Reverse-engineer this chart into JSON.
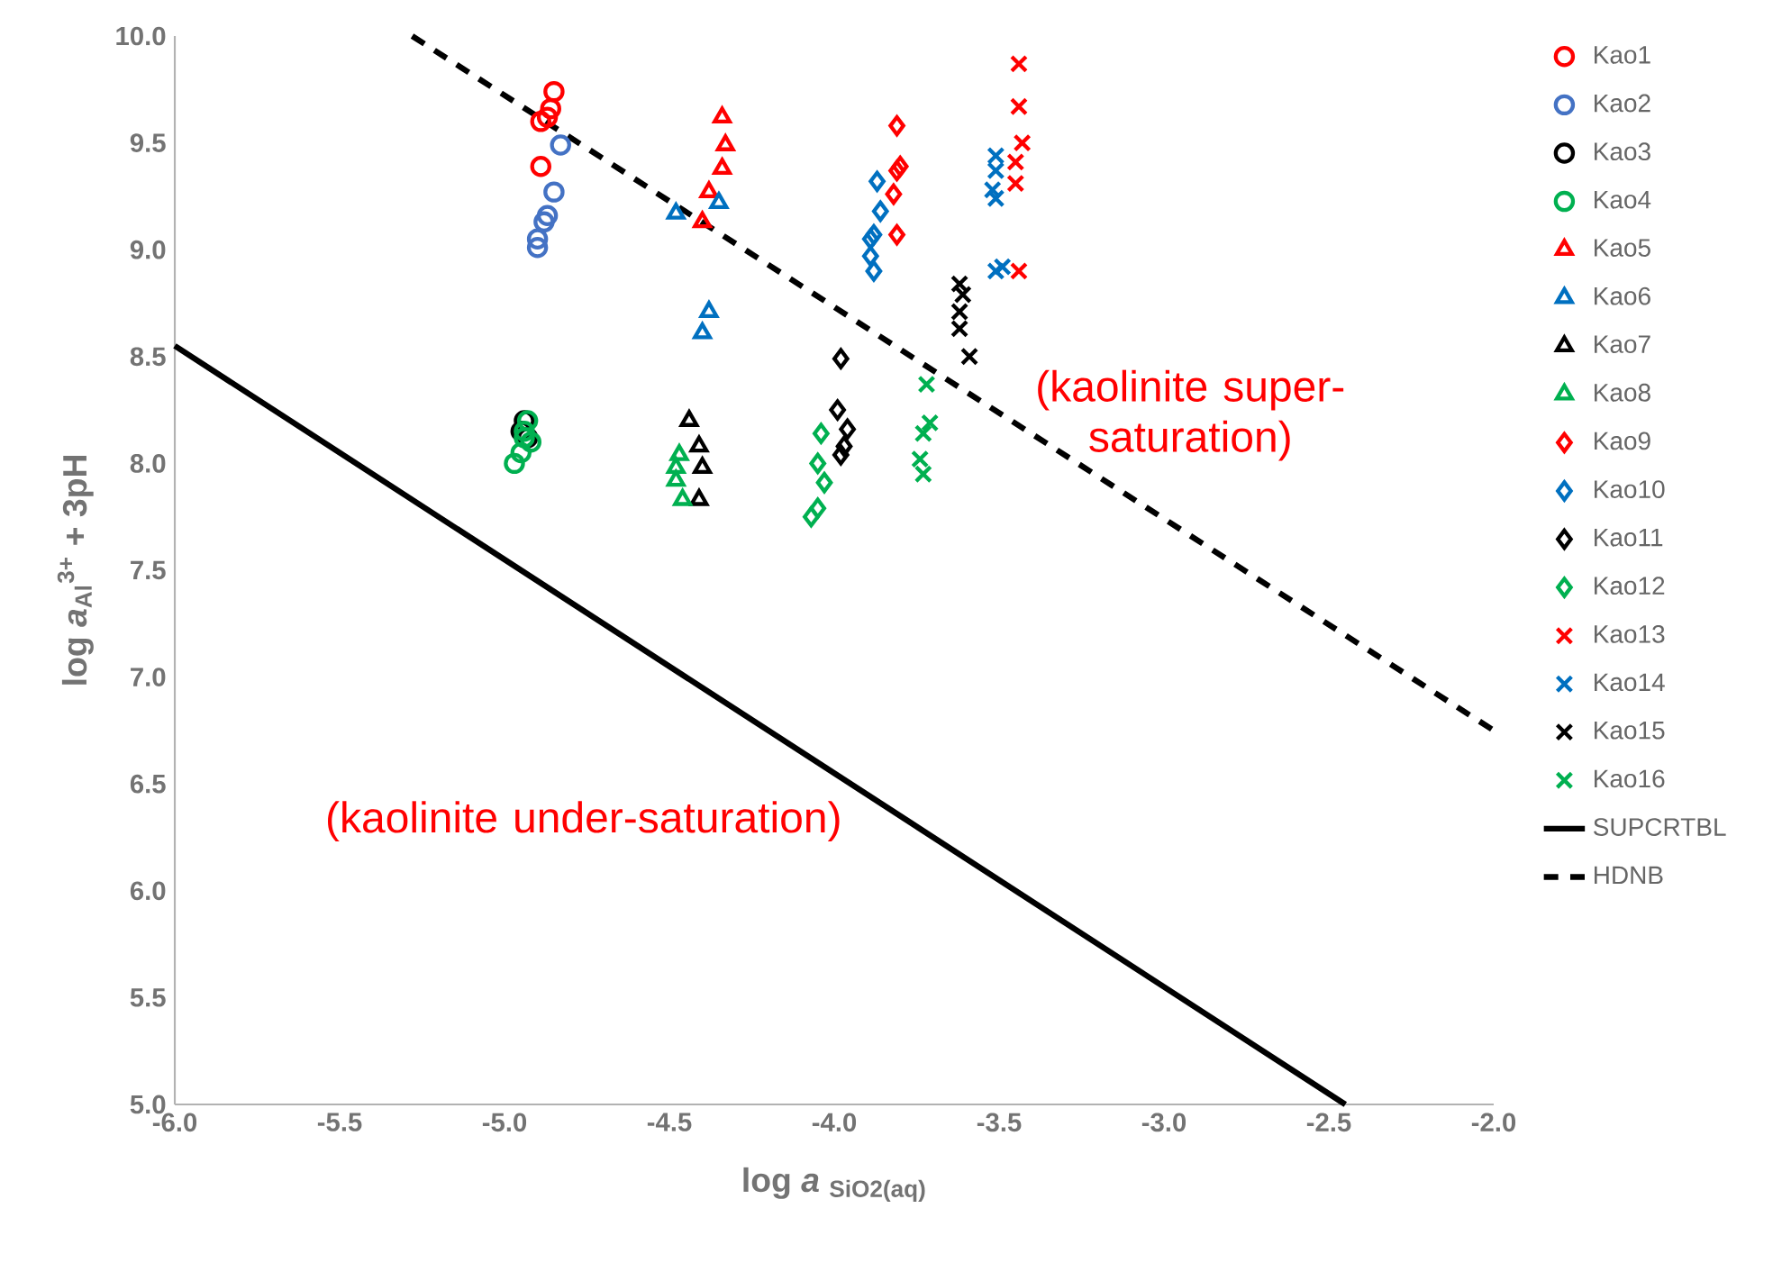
{
  "chart_data": {
    "type": "scatter",
    "xlabel": "log *a* $_{SiO2(aq)}$",
    "ylabel": "log *a*$_{Al}$$^{3+}$ + 3pH",
    "xlim": [
      -6,
      -2
    ],
    "ylim": [
      5,
      10
    ],
    "xticks": [
      {
        "value": -6,
        "label": "-6.0"
      },
      {
        "value": -5.5,
        "label": "-5.5"
      },
      {
        "value": -5,
        "label": "-5.0"
      },
      {
        "value": -4.5,
        "label": "-4.5"
      },
      {
        "value": -4,
        "label": "-4.0"
      },
      {
        "value": -3.5,
        "label": "-3.5"
      },
      {
        "value": -3,
        "label": "-3.0"
      },
      {
        "value": -2.5,
        "label": "-2.5"
      },
      {
        "value": -2,
        "label": "-2.0"
      }
    ],
    "yticks": [
      {
        "value": 5,
        "label": "5.0"
      },
      {
        "value": 5.5,
        "label": "5.5"
      },
      {
        "value": 6,
        "label": "6.0"
      },
      {
        "value": 6.5,
        "label": "6.5"
      },
      {
        "value": 7,
        "label": "7.0"
      },
      {
        "value": 7.5,
        "label": "7.5"
      },
      {
        "value": 8,
        "label": "8.0"
      },
      {
        "value": 8.5,
        "label": "8.5"
      },
      {
        "value": 9,
        "label": "9.0"
      },
      {
        "value": 9.5,
        "label": "9.5"
      },
      {
        "value": 10,
        "label": "10.0"
      }
    ],
    "grid": false,
    "legend": "right",
    "annotations": [
      "(kaolinite super-saturation)",
      "(kaolinite under-saturation)"
    ],
    "series": [
      {
        "name": "Kao1",
        "color": "#ff0000",
        "marker": "circle",
        "x": [
          -4.85,
          -4.86,
          -4.87,
          -4.89,
          -4.89
        ],
        "values": [
          9.74,
          9.66,
          9.62,
          9.6,
          9.39
        ]
      },
      {
        "name": "Kao2",
        "color": "#4472c4",
        "marker": "circle",
        "x": [
          -4.83,
          -4.85,
          -4.87,
          -4.88,
          -4.9,
          -4.9
        ],
        "values": [
          9.49,
          9.27,
          9.16,
          9.13,
          9.05,
          9.01
        ]
      },
      {
        "name": "Kao3",
        "color": "#000000",
        "marker": "circle",
        "x": [
          -4.95,
          -4.94,
          -4.93
        ],
        "values": [
          8.15,
          8.2,
          8.12
        ]
      },
      {
        "name": "Kao4",
        "color": "#00b050",
        "marker": "circle",
        "x": [
          -4.93,
          -4.94,
          -4.92,
          -4.95,
          -4.97,
          -4.94
        ],
        "values": [
          8.2,
          8.15,
          8.1,
          8.05,
          8.0,
          8.12
        ]
      },
      {
        "name": "Kao5",
        "color": "#ff0000",
        "marker": "triangle",
        "x": [
          -4.34,
          -4.33,
          -4.34,
          -4.38,
          -4.4
        ],
        "values": [
          9.62,
          9.49,
          9.38,
          9.27,
          9.13
        ]
      },
      {
        "name": "Kao6",
        "color": "#0070c0",
        "marker": "triangle",
        "x": [
          -4.48,
          -4.35,
          -4.38,
          -4.4
        ],
        "values": [
          9.17,
          9.22,
          8.71,
          8.61
        ]
      },
      {
        "name": "Kao7",
        "color": "#000000",
        "marker": "triangle",
        "x": [
          -4.44,
          -4.41,
          -4.4,
          -4.41
        ],
        "values": [
          8.2,
          8.08,
          7.98,
          7.83
        ]
      },
      {
        "name": "Kao8",
        "color": "#00b050",
        "marker": "triangle",
        "x": [
          -4.47,
          -4.48,
          -4.46,
          -4.48
        ],
        "values": [
          8.04,
          7.92,
          7.83,
          7.98
        ]
      },
      {
        "name": "Kao9",
        "color": "#ff0000",
        "marker": "diamond",
        "x": [
          -3.81,
          -3.8,
          -3.81,
          -3.82,
          -3.81
        ],
        "values": [
          9.58,
          9.39,
          9.37,
          9.26,
          9.07
        ]
      },
      {
        "name": "Kao10",
        "color": "#0070c0",
        "marker": "diamond",
        "x": [
          -3.87,
          -3.86,
          -3.88,
          -3.89,
          -3.89,
          -3.88
        ],
        "values": [
          9.32,
          9.18,
          9.07,
          9.05,
          8.97,
          8.9
        ]
      },
      {
        "name": "Kao11",
        "color": "#000000",
        "marker": "diamond",
        "x": [
          -3.98,
          -3.99,
          -3.96,
          -3.97,
          -3.98
        ],
        "values": [
          8.49,
          8.25,
          8.16,
          8.08,
          8.04
        ]
      },
      {
        "name": "Kao12",
        "color": "#00b050",
        "marker": "diamond",
        "x": [
          -4.04,
          -4.05,
          -4.03,
          -4.05,
          -4.07
        ],
        "values": [
          8.14,
          8.0,
          7.91,
          7.79,
          7.75
        ]
      },
      {
        "name": "Kao13",
        "color": "#ff0000",
        "marker": "cross",
        "x": [
          -3.44,
          -3.44,
          -3.43,
          -3.45,
          -3.45,
          -3.44
        ],
        "values": [
          9.87,
          9.67,
          9.5,
          9.41,
          9.31,
          8.9
        ]
      },
      {
        "name": "Kao14",
        "color": "#0070c0",
        "marker": "cross",
        "x": [
          -3.51,
          -3.51,
          -3.52,
          -3.51,
          -3.51,
          -3.49
        ],
        "values": [
          9.44,
          9.37,
          9.28,
          9.24,
          8.9,
          8.92
        ]
      },
      {
        "name": "Kao15",
        "color": "#000000",
        "marker": "cross",
        "x": [
          -3.62,
          -3.61,
          -3.62,
          -3.62,
          -3.59
        ],
        "values": [
          8.84,
          8.79,
          8.71,
          8.63,
          8.5
        ]
      },
      {
        "name": "Kao16",
        "color": "#00b050",
        "marker": "cross",
        "x": [
          -3.72,
          -3.71,
          -3.73,
          -3.74,
          -3.73
        ],
        "values": [
          8.37,
          8.19,
          8.14,
          8.02,
          7.95
        ]
      },
      {
        "name": "SUPCRTBL",
        "type": "line",
        "line_style": "solid",
        "marker": "none",
        "color": "#000000",
        "x": [
          -6,
          -2.45
        ],
        "values": [
          8.55,
          5.0
        ]
      },
      {
        "name": "HDNB",
        "type": "line",
        "line_style": "dashed",
        "marker": "none",
        "color": "#000000",
        "x": [
          -5.28,
          -2
        ],
        "values": [
          10.0,
          6.75
        ]
      }
    ]
  }
}
